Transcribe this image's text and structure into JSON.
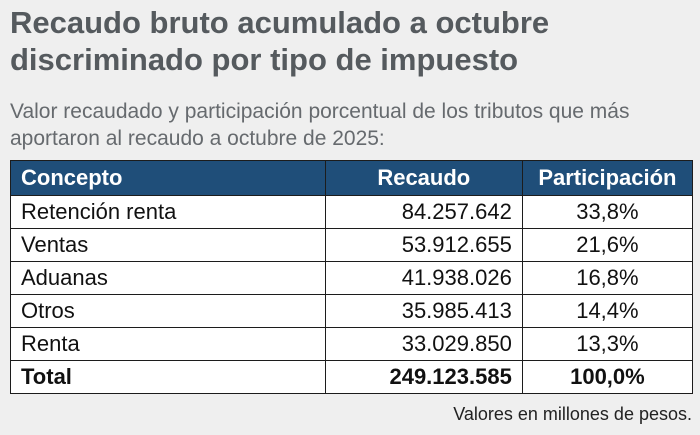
{
  "title": "Recaudo bruto acumulado a octubre discriminado por tipo de impuesto",
  "subtitle": "Valor recaudado y participación porcentual de los tributos que más aportaron al recaudo a octubre de 2025:",
  "note": "Valores en millones de pesos.",
  "colors": {
    "header_bg": "#1f4e79",
    "header_text": "#ffffff",
    "title": "#555a5e"
  },
  "chart_data": {
    "type": "table",
    "columns": [
      "Concepto",
      "Recaudo",
      "Participación"
    ],
    "rows": [
      {
        "concepto": "Retención renta",
        "recaudo": "84.257.642",
        "participacion": "33,8%"
      },
      {
        "concepto": "Ventas",
        "recaudo": "53.912.655",
        "participacion": "21,6%"
      },
      {
        "concepto": "Aduanas",
        "recaudo": "41.938.026",
        "participacion": "16,8%"
      },
      {
        "concepto": "Otros",
        "recaudo": "35.985.413",
        "participacion": "14,4%"
      },
      {
        "concepto": "Renta",
        "recaudo": "33.029.850",
        "participacion": "13,3%"
      }
    ],
    "total": {
      "concepto": "Total",
      "recaudo": "249.123.585",
      "participacion": "100,0%"
    }
  }
}
